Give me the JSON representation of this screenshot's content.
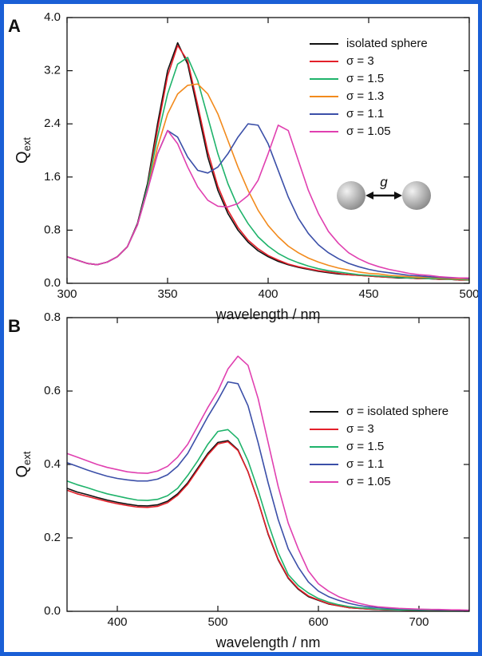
{
  "chart_data": [
    {
      "type": "line",
      "panel_label": "A",
      "xlabel": "wavelength / nm",
      "ylabel": "Q",
      "ylabel_subscript": "ext",
      "annotation": "g",
      "legend": "upper right",
      "xlim": [
        300,
        500
      ],
      "xticks": [
        300,
        350,
        400,
        450,
        500
      ],
      "ylim": [
        0,
        4
      ],
      "yticks": [
        {
          "value": 0,
          "label": "0.0"
        },
        0.8,
        1.6,
        2.4,
        3.2,
        {
          "value": 4,
          "label": "4.0"
        }
      ],
      "x": [
        300,
        305,
        310,
        315,
        320,
        325,
        330,
        335,
        340,
        345,
        350,
        355,
        360,
        365,
        370,
        375,
        380,
        385,
        390,
        395,
        400,
        405,
        410,
        415,
        420,
        425,
        430,
        435,
        440,
        445,
        450,
        455,
        460,
        465,
        470,
        475,
        480,
        485,
        490,
        495,
        500
      ],
      "series": [
        {
          "name": "isolated sphere",
          "color": "#111111",
          "values": [
            0.4,
            0.35,
            0.3,
            0.28,
            0.32,
            0.4,
            0.55,
            0.9,
            1.5,
            2.4,
            3.2,
            3.62,
            3.3,
            2.6,
            1.9,
            1.4,
            1.05,
            0.8,
            0.62,
            0.49,
            0.4,
            0.33,
            0.28,
            0.24,
            0.21,
            0.18,
            0.16,
            0.14,
            0.13,
            0.12,
            0.11,
            0.1,
            0.09,
            0.08,
            0.08,
            0.07,
            0.07,
            0.06,
            0.06,
            0.05,
            0.05
          ]
        },
        {
          "name": "σ = 3",
          "color": "#e3202a",
          "values": [
            0.4,
            0.35,
            0.3,
            0.28,
            0.32,
            0.4,
            0.55,
            0.88,
            1.45,
            2.32,
            3.12,
            3.58,
            3.35,
            2.68,
            1.98,
            1.46,
            1.1,
            0.84,
            0.65,
            0.52,
            0.42,
            0.35,
            0.29,
            0.25,
            0.22,
            0.19,
            0.17,
            0.15,
            0.13,
            0.12,
            0.11,
            0.1,
            0.09,
            0.09,
            0.08,
            0.07,
            0.07,
            0.06,
            0.06,
            0.05,
            0.05
          ]
        },
        {
          "name": "σ = 1.5",
          "color": "#1fb36b",
          "values": [
            0.4,
            0.35,
            0.3,
            0.28,
            0.32,
            0.4,
            0.55,
            0.88,
            1.45,
            2.2,
            2.85,
            3.3,
            3.4,
            3.05,
            2.5,
            1.95,
            1.5,
            1.15,
            0.9,
            0.7,
            0.56,
            0.45,
            0.37,
            0.31,
            0.26,
            0.22,
            0.19,
            0.17,
            0.15,
            0.13,
            0.12,
            0.11,
            0.1,
            0.09,
            0.08,
            0.08,
            0.07,
            0.07,
            0.06,
            0.06,
            0.05
          ]
        },
        {
          "name": "σ = 1.3",
          "color": "#f28a1c",
          "values": [
            0.4,
            0.35,
            0.3,
            0.28,
            0.32,
            0.4,
            0.55,
            0.88,
            1.4,
            2.05,
            2.55,
            2.85,
            2.98,
            3.0,
            2.85,
            2.55,
            2.15,
            1.75,
            1.4,
            1.1,
            0.87,
            0.7,
            0.56,
            0.46,
            0.38,
            0.32,
            0.27,
            0.23,
            0.2,
            0.17,
            0.15,
            0.14,
            0.12,
            0.11,
            0.1,
            0.09,
            0.09,
            0.08,
            0.07,
            0.07,
            0.06
          ]
        },
        {
          "name": "σ = 1.1",
          "color": "#3b4fa8",
          "values": [
            0.4,
            0.35,
            0.3,
            0.28,
            0.32,
            0.4,
            0.55,
            0.88,
            1.4,
            1.95,
            2.3,
            2.2,
            1.9,
            1.7,
            1.66,
            1.75,
            1.95,
            2.2,
            2.4,
            2.38,
            2.1,
            1.7,
            1.3,
            0.98,
            0.75,
            0.58,
            0.46,
            0.37,
            0.3,
            0.25,
            0.21,
            0.18,
            0.16,
            0.14,
            0.12,
            0.11,
            0.1,
            0.09,
            0.08,
            0.08,
            0.07
          ]
        },
        {
          "name": "σ = 1.05",
          "color": "#e040b0",
          "values": [
            0.4,
            0.35,
            0.3,
            0.28,
            0.32,
            0.4,
            0.55,
            0.88,
            1.4,
            1.95,
            2.3,
            2.1,
            1.75,
            1.45,
            1.25,
            1.16,
            1.15,
            1.2,
            1.32,
            1.55,
            1.95,
            2.38,
            2.3,
            1.85,
            1.4,
            1.05,
            0.78,
            0.6,
            0.46,
            0.37,
            0.3,
            0.25,
            0.21,
            0.18,
            0.15,
            0.13,
            0.12,
            0.1,
            0.09,
            0.08,
            0.08
          ]
        }
      ]
    },
    {
      "type": "line",
      "panel_label": "B",
      "xlabel": "wavelength / nm",
      "ylabel": "Q",
      "ylabel_subscript": "ext",
      "legend": "center right",
      "xlim": [
        350,
        750
      ],
      "xticks": [
        400,
        500,
        600,
        700
      ],
      "ylim": [
        0,
        0.8
      ],
      "yticks": [
        {
          "value": 0,
          "label": "0.0"
        },
        0.2,
        0.4,
        0.6,
        0.8
      ],
      "x": [
        350,
        360,
        370,
        380,
        390,
        400,
        410,
        420,
        430,
        440,
        450,
        460,
        470,
        480,
        490,
        500,
        510,
        520,
        530,
        540,
        550,
        560,
        570,
        580,
        590,
        600,
        610,
        620,
        630,
        640,
        650,
        660,
        670,
        680,
        690,
        700,
        710,
        720,
        730,
        740,
        750
      ],
      "series": [
        {
          "name": "σ = isolated sphere",
          "color": "#111111",
          "values": [
            0.335,
            0.325,
            0.318,
            0.31,
            0.303,
            0.297,
            0.292,
            0.288,
            0.287,
            0.29,
            0.3,
            0.32,
            0.35,
            0.39,
            0.43,
            0.46,
            0.465,
            0.44,
            0.38,
            0.3,
            0.21,
            0.14,
            0.09,
            0.06,
            0.04,
            0.03,
            0.02,
            0.015,
            0.01,
            0.008,
            0.006,
            0.005,
            0.004,
            0.004,
            0.003,
            0.003,
            0.003,
            0.002,
            0.002,
            0.002,
            0.002
          ]
        },
        {
          "name": "σ = 3",
          "color": "#e3202a",
          "values": [
            0.33,
            0.32,
            0.313,
            0.306,
            0.299,
            0.293,
            0.288,
            0.284,
            0.283,
            0.286,
            0.296,
            0.316,
            0.346,
            0.386,
            0.426,
            0.456,
            0.462,
            0.438,
            0.38,
            0.3,
            0.212,
            0.142,
            0.092,
            0.062,
            0.042,
            0.031,
            0.021,
            0.015,
            0.01,
            0.008,
            0.006,
            0.005,
            0.004,
            0.004,
            0.003,
            0.003,
            0.003,
            0.002,
            0.002,
            0.002,
            0.002
          ]
        },
        {
          "name": "σ = 1.5",
          "color": "#1fb36b",
          "values": [
            0.355,
            0.345,
            0.337,
            0.328,
            0.32,
            0.314,
            0.308,
            0.303,
            0.302,
            0.305,
            0.315,
            0.335,
            0.37,
            0.41,
            0.455,
            0.49,
            0.495,
            0.47,
            0.41,
            0.33,
            0.24,
            0.16,
            0.1,
            0.07,
            0.05,
            0.035,
            0.025,
            0.018,
            0.013,
            0.01,
            0.008,
            0.006,
            0.005,
            0.004,
            0.004,
            0.003,
            0.003,
            0.003,
            0.002,
            0.002,
            0.002
          ]
        },
        {
          "name": "σ = 1.1",
          "color": "#3b4fa8",
          "values": [
            0.405,
            0.395,
            0.385,
            0.376,
            0.368,
            0.362,
            0.358,
            0.355,
            0.355,
            0.36,
            0.372,
            0.395,
            0.43,
            0.48,
            0.53,
            0.575,
            0.625,
            0.62,
            0.56,
            0.46,
            0.35,
            0.25,
            0.17,
            0.12,
            0.08,
            0.055,
            0.04,
            0.03,
            0.022,
            0.016,
            0.012,
            0.01,
            0.008,
            0.007,
            0.006,
            0.005,
            0.005,
            0.004,
            0.004,
            0.003,
            0.003
          ]
        },
        {
          "name": "σ = 1.05",
          "color": "#e040b0",
          "values": [
            0.43,
            0.42,
            0.41,
            0.4,
            0.392,
            0.386,
            0.38,
            0.377,
            0.376,
            0.382,
            0.395,
            0.42,
            0.455,
            0.505,
            0.555,
            0.6,
            0.66,
            0.695,
            0.67,
            0.58,
            0.46,
            0.34,
            0.24,
            0.17,
            0.11,
            0.075,
            0.055,
            0.04,
            0.03,
            0.022,
            0.016,
            0.012,
            0.01,
            0.008,
            0.007,
            0.006,
            0.005,
            0.005,
            0.004,
            0.004,
            0.003
          ]
        }
      ]
    }
  ]
}
